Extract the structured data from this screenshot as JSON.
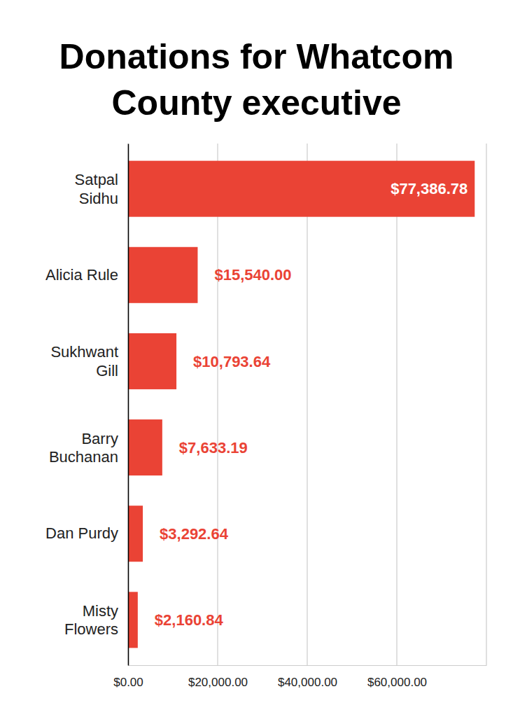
{
  "chart_data": {
    "type": "bar",
    "orientation": "horizontal",
    "title": "Donations for Whatcom County executive",
    "categories": [
      "Satpal Sidhu",
      "Alicia Rule",
      "Sukhwant Gill",
      "Barry Buchanan",
      "Dan Purdy",
      "Misty Flowers"
    ],
    "values": [
      77386.78,
      15540.0,
      10793.64,
      7633.19,
      3292.64,
      2160.84
    ],
    "value_labels": [
      "$77,386.78",
      "$15,540.00",
      "$10,793.64",
      "$7,633.19",
      "$3,292.64",
      "$2,160.84"
    ],
    "color": "#ea4335",
    "xlim": [
      0,
      80000
    ],
    "xticks": [
      {
        "value": 0,
        "label": "$0.00"
      },
      {
        "value": 20000,
        "label": "$20,000.00"
      },
      {
        "value": 40000,
        "label": "$40,000.00"
      },
      {
        "value": 60000,
        "label": "$60,000.00"
      }
    ],
    "grid": true,
    "data_labels": true
  }
}
